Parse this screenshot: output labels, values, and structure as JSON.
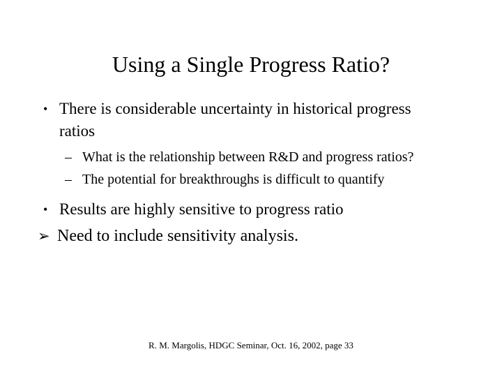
{
  "slide": {
    "title": "Using a Single Progress Ratio?",
    "bullets": [
      {
        "level": 1,
        "marker": "•",
        "text": "There is considerable uncertainty in historical progress ratios"
      },
      {
        "level": 2,
        "marker": "–",
        "text": "What is the relationship between R&D and progress ratios?"
      },
      {
        "level": 2,
        "marker": "–",
        "text": "The potential for breakthroughs is difficult to quantify"
      },
      {
        "level": 1,
        "marker": "•",
        "text": "Results are highly sensitive to progress ratio"
      },
      {
        "level": 1,
        "marker": "➢",
        "text": "Need to include sensitivity analysis."
      }
    ],
    "footer": "R. M. Margolis, HDGC Seminar, Oct. 16, 2002, page 33",
    "colors": {
      "background": "#ffffff",
      "text": "#000000"
    }
  }
}
